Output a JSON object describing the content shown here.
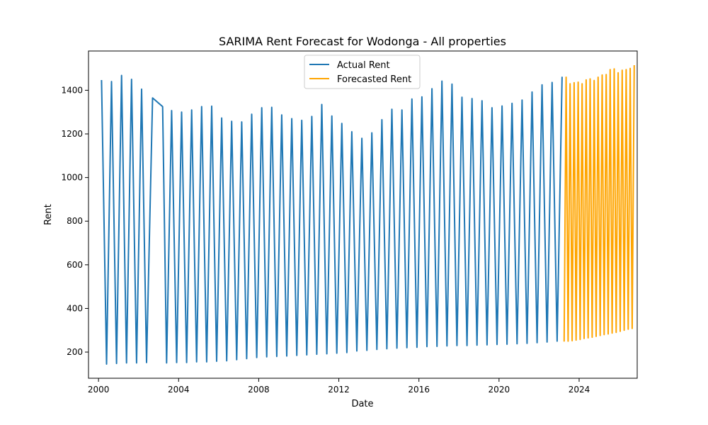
{
  "chart_data": {
    "type": "line",
    "title": "SARIMA Rent Forecast for Wodonga - All properties",
    "xlabel": "Date",
    "ylabel": "Rent",
    "xlim": [
      1999.5,
      2026.9
    ],
    "ylim": [
      80,
      1580
    ],
    "x_ticks": [
      2000,
      2004,
      2008,
      2012,
      2016,
      2020,
      2024
    ],
    "y_ticks": [
      200,
      400,
      600,
      800,
      1000,
      1200,
      1400
    ],
    "grid": false,
    "legend_position": "top-center",
    "series": [
      {
        "name": "Actual Rent",
        "color": "#1f77b4",
        "points": [
          [
            2000.15,
            1447
          ],
          [
            2000.4,
            145
          ],
          [
            2000.65,
            1440
          ],
          [
            2000.9,
            148
          ],
          [
            2001.15,
            1468
          ],
          [
            2001.4,
            150
          ],
          [
            2001.65,
            1450
          ],
          [
            2001.9,
            150
          ],
          [
            2002.15,
            1405
          ],
          [
            2002.4,
            152
          ],
          [
            2002.7,
            1365
          ],
          [
            2003.2,
            1325
          ],
          [
            2003.4,
            150
          ],
          [
            2003.65,
            1307
          ],
          [
            2003.9,
            152
          ],
          [
            2004.15,
            1300
          ],
          [
            2004.4,
            152
          ],
          [
            2004.65,
            1310
          ],
          [
            2004.9,
            155
          ],
          [
            2005.15,
            1325
          ],
          [
            2005.4,
            155
          ],
          [
            2005.65,
            1327
          ],
          [
            2005.9,
            158
          ],
          [
            2006.15,
            1273
          ],
          [
            2006.4,
            160
          ],
          [
            2006.65,
            1258
          ],
          [
            2006.9,
            165
          ],
          [
            2007.15,
            1255
          ],
          [
            2007.4,
            170
          ],
          [
            2007.65,
            1290
          ],
          [
            2007.9,
            175
          ],
          [
            2008.15,
            1320
          ],
          [
            2008.4,
            178
          ],
          [
            2008.65,
            1322
          ],
          [
            2008.9,
            180
          ],
          [
            2009.15,
            1287
          ],
          [
            2009.4,
            182
          ],
          [
            2009.65,
            1270
          ],
          [
            2009.9,
            185
          ],
          [
            2010.15,
            1262
          ],
          [
            2010.4,
            187
          ],
          [
            2010.65,
            1280
          ],
          [
            2010.9,
            190
          ],
          [
            2011.15,
            1335
          ],
          [
            2011.4,
            192
          ],
          [
            2011.65,
            1282
          ],
          [
            2011.9,
            195
          ],
          [
            2012.15,
            1248
          ],
          [
            2012.4,
            198
          ],
          [
            2012.65,
            1210
          ],
          [
            2012.9,
            205
          ],
          [
            2013.15,
            1180
          ],
          [
            2013.4,
            208
          ],
          [
            2013.65,
            1205
          ],
          [
            2013.9,
            212
          ],
          [
            2014.15,
            1265
          ],
          [
            2014.4,
            215
          ],
          [
            2014.65,
            1313
          ],
          [
            2014.9,
            218
          ],
          [
            2015.15,
            1310
          ],
          [
            2015.4,
            220
          ],
          [
            2015.65,
            1360
          ],
          [
            2015.9,
            222
          ],
          [
            2016.15,
            1370
          ],
          [
            2016.4,
            225
          ],
          [
            2016.65,
            1407
          ],
          [
            2016.9,
            226
          ],
          [
            2017.15,
            1442
          ],
          [
            2017.4,
            228
          ],
          [
            2017.65,
            1428
          ],
          [
            2017.9,
            230
          ],
          [
            2018.15,
            1368
          ],
          [
            2018.4,
            230
          ],
          [
            2018.65,
            1362
          ],
          [
            2018.9,
            232
          ],
          [
            2019.15,
            1352
          ],
          [
            2019.4,
            233
          ],
          [
            2019.65,
            1320
          ],
          [
            2019.9,
            235
          ],
          [
            2020.15,
            1328
          ],
          [
            2020.4,
            236
          ],
          [
            2020.65,
            1340
          ],
          [
            2020.9,
            238
          ],
          [
            2021.15,
            1355
          ],
          [
            2021.4,
            240
          ],
          [
            2021.65,
            1392
          ],
          [
            2021.9,
            243
          ],
          [
            2022.15,
            1425
          ],
          [
            2022.4,
            246
          ],
          [
            2022.65,
            1436
          ],
          [
            2022.9,
            250
          ],
          [
            2023.15,
            1462
          ]
        ]
      },
      {
        "name": "Forecasted Rent",
        "color": "#ffa500",
        "points": [
          [
            2023.25,
            248
          ],
          [
            2023.35,
            1460
          ],
          [
            2023.45,
            250
          ],
          [
            2023.55,
            1430
          ],
          [
            2023.65,
            252
          ],
          [
            2023.75,
            1435
          ],
          [
            2023.85,
            255
          ],
          [
            2023.95,
            1437
          ],
          [
            2024.05,
            258
          ],
          [
            2024.15,
            1430
          ],
          [
            2024.25,
            262
          ],
          [
            2024.35,
            1448
          ],
          [
            2024.45,
            265
          ],
          [
            2024.55,
            1452
          ],
          [
            2024.65,
            268
          ],
          [
            2024.75,
            1445
          ],
          [
            2024.85,
            272
          ],
          [
            2024.95,
            1460
          ],
          [
            2025.05,
            276
          ],
          [
            2025.15,
            1470
          ],
          [
            2025.25,
            280
          ],
          [
            2025.35,
            1472
          ],
          [
            2025.45,
            283
          ],
          [
            2025.55,
            1495
          ],
          [
            2025.65,
            287
          ],
          [
            2025.75,
            1498
          ],
          [
            2025.85,
            290
          ],
          [
            2025.95,
            1480
          ],
          [
            2026.05,
            295
          ],
          [
            2026.15,
            1492
          ],
          [
            2026.25,
            300
          ],
          [
            2026.35,
            1495
          ],
          [
            2026.45,
            305
          ],
          [
            2026.55,
            1500
          ],
          [
            2026.65,
            308
          ],
          [
            2026.75,
            1515
          ]
        ]
      }
    ]
  }
}
